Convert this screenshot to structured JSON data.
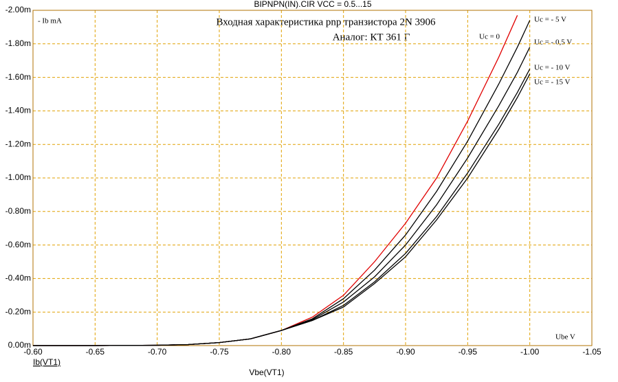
{
  "chart_data": {
    "type": "line",
    "title": "BIPNPN(IN).CIR VCC = 0.5...15",
    "x_label": "Vbe(VT1)",
    "y_label": "Ib(VT1)",
    "annotations": [
      "- Ib mA",
      "Входная характеристика pnp транзистора 2N 3906",
      "Аналог: КТ 361 Г",
      "Ube V"
    ],
    "x": [
      -0.6,
      -0.65,
      -0.7,
      -0.725,
      -0.75,
      -0.775,
      -0.8,
      -0.825,
      -0.85,
      -0.875,
      -0.9,
      -0.925,
      -0.95,
      -0.975,
      -0.99,
      -1.0
    ],
    "series": [
      {
        "name": "Uc = 0",
        "color": "#e00000",
        "values": [
          0,
          0,
          -0.002,
          -0.006,
          -0.018,
          -0.04,
          -0.09,
          -0.17,
          -0.3,
          -0.5,
          -0.73,
          -1.0,
          -1.34,
          -1.72,
          -1.97,
          null
        ]
      },
      {
        "name": "Uc = - 5 V",
        "color": "#000000",
        "values": [
          0,
          0,
          -0.002,
          -0.006,
          -0.018,
          -0.04,
          -0.09,
          -0.16,
          -0.28,
          -0.45,
          -0.66,
          -0.92,
          -1.22,
          -1.56,
          -1.78,
          -1.94
        ]
      },
      {
        "name": "Uc = - 0,5 V",
        "color": "#000000",
        "values": [
          0,
          0,
          -0.002,
          -0.006,
          -0.018,
          -0.04,
          -0.09,
          -0.155,
          -0.26,
          -0.41,
          -0.6,
          -0.84,
          -1.12,
          -1.43,
          -1.63,
          -1.78
        ]
      },
      {
        "name": "Uc = - 10 V",
        "color": "#000000",
        "values": [
          0,
          0,
          -0.002,
          -0.006,
          -0.018,
          -0.04,
          -0.09,
          -0.15,
          -0.24,
          -0.38,
          -0.55,
          -0.77,
          -1.03,
          -1.32,
          -1.51,
          -1.65
        ]
      },
      {
        "name": "Uc = - 15 V",
        "color": "#000000",
        "values": [
          0,
          0,
          -0.002,
          -0.006,
          -0.018,
          -0.04,
          -0.09,
          -0.15,
          -0.23,
          -0.37,
          -0.53,
          -0.75,
          -1.0,
          -1.29,
          -1.48,
          -1.62
        ]
      }
    ],
    "xlim": [
      -0.6,
      -1.05
    ],
    "xticks": [
      {
        "value": -0.6,
        "label": "-0.60"
      },
      {
        "value": -0.65,
        "label": "-0.65"
      },
      {
        "value": -0.7,
        "label": "-0.70"
      },
      {
        "value": -0.75,
        "label": "-0.75"
      },
      {
        "value": -0.8,
        "label": "-0.80"
      },
      {
        "value": -0.85,
        "label": "-0.85"
      },
      {
        "value": -0.9,
        "label": "-0.90"
      },
      {
        "value": -0.95,
        "label": "-0.95"
      },
      {
        "value": -1.0,
        "label": "-1.00"
      },
      {
        "value": -1.05,
        "label": "-1.05"
      }
    ],
    "ylim": [
      0,
      -2
    ],
    "yticks": [
      {
        "value": 0,
        "label": "0.00m"
      },
      {
        "value": -0.2,
        "label": "-0.20m"
      },
      {
        "value": -0.4,
        "label": "-0.40m"
      },
      {
        "value": -0.6,
        "label": "-0.60m"
      },
      {
        "value": -0.8,
        "label": "-0.80m"
      },
      {
        "value": -1.0,
        "label": "-1.00m"
      },
      {
        "value": -1.2,
        "label": "-1.20m"
      },
      {
        "value": -1.4,
        "label": "-1.40m"
      },
      {
        "value": -1.6,
        "label": "-1.60m"
      },
      {
        "value": -1.8,
        "label": "-1.80m"
      },
      {
        "value": -2.0,
        "label": "-2.00m"
      }
    ],
    "grid": true
  }
}
